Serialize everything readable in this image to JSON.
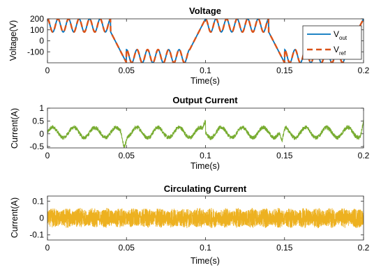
{
  "chart_data": [
    {
      "type": "line",
      "title": "Voltage",
      "xlabel": "Time(s)",
      "ylabel": "Voltage(V)",
      "xlim": [
        0,
        0.2
      ],
      "ylim": [
        -200,
        200
      ],
      "xticks": [
        0,
        0.05,
        0.1,
        0.15,
        0.2
      ],
      "xtick_labels": [
        "0",
        "0.05",
        "0.1",
        "0.15",
        "0.2"
      ],
      "yticks": [
        200,
        100,
        0,
        -100
      ],
      "ytick_labels": [
        "200",
        "100",
        "0",
        "-100"
      ],
      "legend_position": "top-right",
      "series": [
        {
          "name": "out",
          "legend_main": "V",
          "legend_sub": "out",
          "color": "#0072BD",
          "style": "solid",
          "description": "multilevel sine: each half period of 0.1 s has a 0.04 s plateau at +140 V with a 150 Hz ripple of 60 V amplitude (80..200 V), a linear ramp of 0.01 s, and a plateau at -140 V with the same ripple"
        },
        {
          "name": "ref",
          "legend_main": "V",
          "legend_sub": "ref",
          "color": "#D95319",
          "style": "dashed",
          "description": "same waveform as V_out, drawn dashed on top"
        }
      ],
      "waveform": {
        "period": 0.1,
        "plateau_duration": 0.04,
        "ramp_duration": 0.01,
        "plateau_level": 140,
        "ripple_amplitude": 60,
        "ripple_frequency": 150
      }
    },
    {
      "type": "line",
      "title": "Output Current",
      "xlabel": "Time(s)",
      "ylabel": "Current(A)",
      "xlim": [
        0,
        0.2
      ],
      "ylim": [
        -0.55,
        1.0
      ],
      "xticks": [
        0,
        0.05,
        0.1,
        0.15,
        0.2
      ],
      "xtick_labels": [
        "0",
        "0.05",
        "0.1",
        "0.15",
        "0.2"
      ],
      "yticks": [
        1,
        0.5,
        0,
        -0.5
      ],
      "ytick_labels": [
        "1",
        "0.5",
        "0",
        "-0.5"
      ],
      "series": [
        {
          "name": "output current",
          "color": "#77AC30",
          "description": "approx. 0.05 + 0.2*sin(2*pi*75*t) with high-frequency noise; spikes up to about 0.7 at t = 0.1 and 0.2; dips to about -0.5 near t = 0.05 and 0.15"
        }
      ],
      "waveform": {
        "offset": 0.05,
        "amplitude": 0.2,
        "frequency": 75,
        "noise_amplitude": 0.08
      }
    },
    {
      "type": "line",
      "title": "Circulating Current",
      "xlabel": "Time(s)",
      "ylabel": "Current(A)",
      "xlim": [
        0,
        0.2
      ],
      "ylim": [
        -0.13,
        0.13
      ],
      "xticks": [
        0,
        0.05,
        0.1,
        0.15,
        0.2
      ],
      "xtick_labels": [
        "0",
        "0.05",
        "0.1",
        "0.15",
        "0.2"
      ],
      "yticks": [
        0.1,
        0,
        -0.1
      ],
      "ytick_labels": [
        "0.1",
        "0",
        "-0.1"
      ],
      "series": [
        {
          "name": "circulating current",
          "color": "#EDB120",
          "description": "dense high-frequency oscillation filling roughly -0.12..0.13 with amplitude modulation across the whole window"
        }
      ],
      "waveform": {
        "amplitude": 0.12
      }
    }
  ]
}
